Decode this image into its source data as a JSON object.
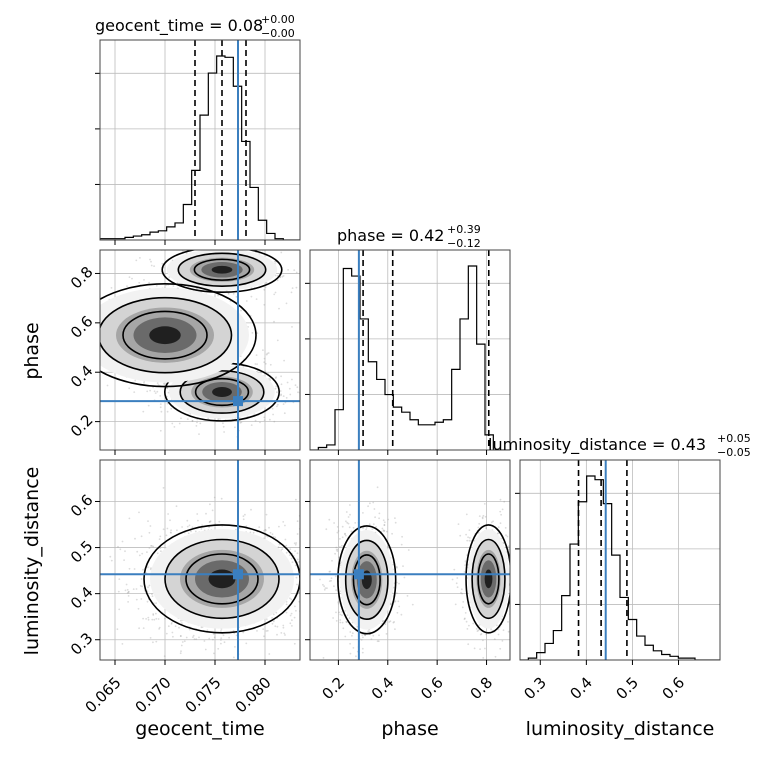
{
  "figure": {
    "truth_color": "#3b7fbf",
    "hist_color": "#000000",
    "scatter_color": "#9a9a9a",
    "grid_color": "#bdbdbd"
  },
  "chart_data": {
    "type": "corner",
    "parameters": [
      "geocent_time",
      "phase",
      "luminosity_distance"
    ],
    "axis_labels": {
      "x": [
        "geocent_time",
        "phase",
        "luminosity_distance"
      ],
      "y": [
        "",
        "phase",
        "luminosity_distance"
      ]
    },
    "titles": [
      {
        "name": "geocent_time",
        "text": "geocent_time = 0.08",
        "plus": "+0.00",
        "minus": "−0.00"
      },
      {
        "name": "phase",
        "text": "phase = 0.42",
        "plus": "+0.39",
        "minus": "−0.12"
      },
      {
        "name": "luminosity_distance",
        "text": "luminosity_distance = 0.43",
        "plus": "+0.05",
        "minus": "−0.05"
      }
    ],
    "ranges": [
      [
        0.0635,
        0.0835
      ],
      [
        0.085,
        0.895
      ],
      [
        0.256,
        0.69
      ]
    ],
    "ticks": [
      {
        "values": [
          0.065,
          0.07,
          0.075,
          0.08
        ],
        "labels": [
          "0.065",
          "0.070",
          "0.075",
          "0.080"
        ]
      },
      {
        "values": [
          0.2,
          0.4,
          0.6,
          0.8
        ],
        "labels": [
          "0.2",
          "0.4",
          "0.6",
          "0.8"
        ]
      },
      {
        "values": [
          0.3,
          0.4,
          0.5,
          0.6
        ],
        "labels": [
          "0.3",
          "0.4",
          "0.5",
          "0.6"
        ]
      }
    ],
    "truths": [
      0.0773,
      0.283,
      0.442
    ],
    "quantiles": [
      [
        0.073,
        0.0757,
        0.0781
      ],
      [
        0.3,
        0.42,
        0.809
      ],
      [
        0.383,
        0.432,
        0.488
      ]
    ],
    "histograms": [
      {
        "counts": [
          1,
          1,
          1,
          2,
          3,
          4,
          6,
          7,
          10,
          13,
          27,
          53,
          95,
          127,
          140,
          139,
          117,
          75,
          40,
          15,
          5,
          1,
          0,
          0
        ]
      },
      {
        "counts": [
          0,
          1,
          2,
          16,
          72,
          69,
          52,
          35,
          28,
          22,
          17,
          15,
          12,
          10,
          10,
          11,
          12,
          32,
          52,
          73,
          42,
          6,
          0,
          0
        ]
      },
      {
        "counts": [
          0,
          1,
          4,
          9,
          16,
          35,
          63,
          86,
          100,
          98,
          85,
          57,
          34,
          22,
          13,
          8,
          5,
          3,
          2,
          1,
          1,
          0,
          0,
          0
        ]
      }
    ],
    "joint_modes": [
      {
        "pair": "phase_vs_geocent_time",
        "modes": [
          {
            "x": 0.0757,
            "y": 0.815,
            "sx": 0.0023,
            "sy": 0.035,
            "w": 0.33
          },
          {
            "x": 0.0757,
            "y": 0.32,
            "sx": 0.0022,
            "sy": 0.045,
            "w": 0.45
          },
          {
            "x": 0.07,
            "y": 0.55,
            "sx": 0.0035,
            "sy": 0.08,
            "w": 0.22
          }
        ]
      },
      {
        "pair": "luminosity_distance_vs_geocent_time",
        "modes": [
          {
            "x": 0.0757,
            "y": 0.432,
            "sx": 0.003,
            "sy": 0.045,
            "w": 1.0
          }
        ]
      },
      {
        "pair": "luminosity_distance_vs_phase",
        "modes": [
          {
            "x": 0.315,
            "y": 0.43,
            "sx": 0.045,
            "sy": 0.045,
            "w": 0.62
          },
          {
            "x": 0.808,
            "y": 0.432,
            "sx": 0.035,
            "sy": 0.045,
            "w": 0.38
          }
        ]
      }
    ],
    "grid": true,
    "legend": "none"
  }
}
